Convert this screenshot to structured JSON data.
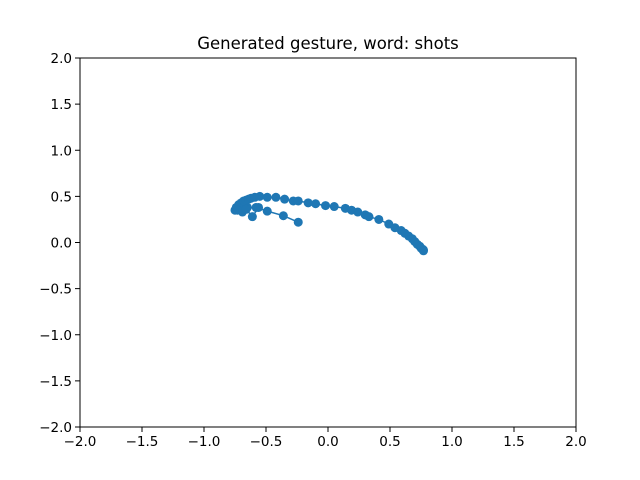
{
  "chart_data": {
    "type": "scatter",
    "title": "Generated gesture, word: shots",
    "xlabel": "",
    "ylabel": "",
    "xlim": [
      -2.0,
      2.0
    ],
    "ylim": [
      -2.0,
      2.0
    ],
    "grid": false,
    "color": "#1f77b4",
    "connected": true,
    "x_ticks": [
      -2.0,
      -1.5,
      -1.0,
      -0.5,
      0.0,
      0.5,
      1.0,
      1.5,
      2.0
    ],
    "x_tick_labels": [
      "−2.0",
      "−1.5",
      "−1.0",
      "−0.5",
      "0.0",
      "0.5",
      "1.0",
      "1.5",
      "2.0"
    ],
    "y_ticks": [
      -2.0,
      -1.5,
      -1.0,
      -0.5,
      0.0,
      0.5,
      1.0,
      1.5,
      2.0
    ],
    "y_tick_labels": [
      "−2.0",
      "−1.5",
      "−1.0",
      "−0.5",
      "0.0",
      "0.5",
      "1.0",
      "1.5",
      "2.0"
    ],
    "series": [
      {
        "x": [
          -0.24,
          -0.36,
          -0.49,
          -0.58,
          -0.65,
          -0.71,
          -0.75,
          -0.74,
          -0.72,
          -0.7,
          -0.68,
          -0.66,
          -0.64,
          -0.62,
          -0.59,
          -0.55,
          -0.49,
          -0.42,
          -0.35,
          -0.28,
          -0.24,
          -0.16,
          -0.1,
          -0.02,
          0.05,
          0.14,
          0.19,
          0.24,
          0.3,
          0.33,
          0.41,
          0.49,
          0.54,
          0.59,
          0.62,
          0.65,
          0.68,
          0.7,
          0.72,
          0.74,
          0.75,
          0.76,
          0.77,
          0.77
        ],
        "y": [
          0.22,
          0.29,
          0.34,
          0.38,
          0.38,
          0.38,
          0.35,
          0.38,
          0.41,
          0.43,
          0.45,
          0.46,
          0.47,
          0.48,
          0.49,
          0.5,
          0.49,
          0.49,
          0.47,
          0.45,
          0.45,
          0.43,
          0.42,
          0.4,
          0.39,
          0.37,
          0.35,
          0.33,
          0.3,
          0.28,
          0.25,
          0.2,
          0.16,
          0.13,
          0.1,
          0.07,
          0.04,
          0.01,
          -0.02,
          -0.04,
          -0.06,
          -0.07,
          -0.08,
          -0.09
        ]
      },
      {
        "x": [
          -0.73,
          -0.69,
          -0.66,
          -0.61,
          -0.56
        ],
        "y": [
          0.35,
          0.33,
          0.36,
          0.28,
          0.38
        ]
      }
    ]
  }
}
